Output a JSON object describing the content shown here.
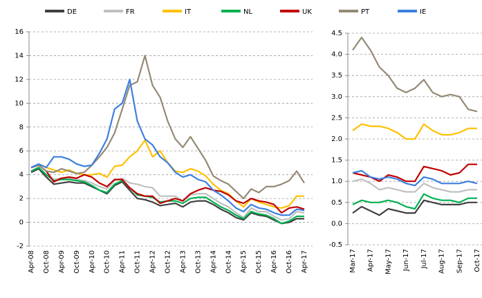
{
  "chart_data": [
    {
      "type": "line",
      "categories": [
        "Apr-08",
        null,
        "Oct-08",
        null,
        "Apr-09",
        null,
        "Oct-09",
        null,
        "Apr-10",
        null,
        "Oct-10",
        null,
        "Apr-11",
        null,
        "Oct-11",
        null,
        "Apr-12",
        null,
        "Oct-12",
        null,
        "Apr-13",
        null,
        "Oct-13",
        null,
        "Apr-14",
        null,
        "Oct-14",
        null,
        "Apr-15",
        null,
        "Oct-15",
        null,
        "Apr-16",
        null,
        "Oct-16",
        null,
        "Apr-17"
      ],
      "ylim": [
        -2,
        16
      ],
      "yticks": [
        -2,
        0,
        2,
        4,
        6,
        8,
        10,
        12,
        14,
        16
      ],
      "grid": true,
      "series": [
        {
          "name": "DE",
          "color": "#404040",
          "values": [
            4.2,
            4.5,
            3.8,
            3.2,
            3.3,
            3.4,
            3.3,
            3.3,
            3.0,
            2.7,
            2.4,
            3.1,
            3.4,
            2.7,
            2.0,
            1.9,
            1.7,
            1.4,
            1.5,
            1.6,
            1.3,
            1.7,
            1.8,
            1.8,
            1.5,
            1.1,
            0.8,
            0.4,
            0.2,
            0.8,
            0.6,
            0.5,
            0.2,
            -0.1,
            0.0,
            0.3,
            0.3
          ]
        },
        {
          "name": "FR",
          "color": "#c0c0c0",
          "values": [
            4.3,
            4.6,
            4.0,
            3.6,
            3.7,
            3.7,
            3.6,
            3.5,
            3.3,
            3.0,
            2.8,
            3.5,
            3.7,
            3.3,
            3.2,
            3.0,
            2.9,
            2.2,
            2.2,
            2.2,
            1.8,
            2.3,
            2.4,
            2.4,
            2.0,
            1.6,
            1.3,
            0.8,
            0.4,
            1.2,
            0.9,
            0.9,
            0.5,
            0.2,
            0.3,
            0.9,
            0.8
          ]
        },
        {
          "name": "IT",
          "color": "#ffc000",
          "values": [
            4.6,
            4.9,
            4.6,
            4.4,
            4.2,
            4.4,
            4.1,
            4.0,
            4.0,
            4.1,
            3.8,
            4.7,
            4.8,
            5.5,
            6.0,
            6.9,
            5.5,
            6.0,
            5.0,
            4.3,
            4.2,
            4.5,
            4.3,
            3.9,
            3.2,
            2.7,
            2.4,
            1.8,
            1.3,
            2.0,
            1.7,
            1.5,
            1.3,
            1.2,
            1.4,
            2.2,
            2.2
          ]
        },
        {
          "name": "NL",
          "color": "#00b050",
          "values": [
            4.3,
            4.6,
            4.0,
            3.5,
            3.6,
            3.6,
            3.5,
            3.4,
            3.1,
            2.7,
            2.5,
            3.2,
            3.5,
            2.9,
            2.3,
            2.2,
            2.1,
            1.7,
            1.8,
            1.8,
            1.6,
            2.0,
            2.1,
            2.1,
            1.7,
            1.3,
            1.0,
            0.6,
            0.3,
            0.9,
            0.7,
            0.6,
            0.3,
            -0.1,
            0.1,
            0.5,
            0.5
          ]
        },
        {
          "name": "UK",
          "color": "#c00000",
          "values": [
            4.6,
            4.8,
            4.3,
            3.4,
            3.7,
            3.8,
            3.7,
            4.0,
            3.8,
            3.3,
            3.0,
            3.6,
            3.6,
            2.9,
            2.4,
            2.2,
            2.2,
            1.6,
            1.8,
            2.0,
            1.8,
            2.4,
            2.7,
            2.9,
            2.7,
            2.6,
            2.3,
            1.8,
            1.6,
            2.0,
            1.8,
            1.7,
            1.5,
            0.8,
            1.2,
            1.3,
            1.1
          ]
        },
        {
          "name": "PT",
          "color": "#948a74",
          "values": [
            4.6,
            4.8,
            4.3,
            4.2,
            4.5,
            4.3,
            4.1,
            4.2,
            4.8,
            5.5,
            6.3,
            7.5,
            9.5,
            11.5,
            11.8,
            14.0,
            11.5,
            10.5,
            8.5,
            7.0,
            6.3,
            7.2,
            6.2,
            5.2,
            3.9,
            3.5,
            3.2,
            2.6,
            2.0,
            2.8,
            2.5,
            3.0,
            3.0,
            3.2,
            3.5,
            4.3,
            3.3
          ]
        },
        {
          "name": "IE",
          "color": "#3c7fe0",
          "values": [
            4.6,
            4.9,
            4.6,
            5.5,
            5.5,
            5.3,
            4.9,
            4.7,
            4.8,
            5.8,
            7.0,
            9.5,
            10.0,
            12.0,
            8.5,
            7.0,
            6.5,
            5.5,
            5.0,
            4.2,
            3.8,
            4.0,
            3.6,
            3.4,
            2.7,
            2.3,
            1.8,
            1.2,
            0.9,
            1.5,
            1.2,
            1.1,
            0.8,
            0.6,
            0.6,
            1.1,
            1.0
          ]
        }
      ]
    },
    {
      "type": "line",
      "categories": [
        "Mar-17",
        null,
        "Apr-17",
        null,
        "May-17",
        null,
        "Jun-17",
        null,
        "Jul-17",
        null,
        "Aug-17",
        null,
        "Sep-17",
        null,
        "Oct-17"
      ],
      "ylim": [
        -0.5,
        4.5
      ],
      "yticks": [
        -0.5,
        {
          "value": 0,
          "label": "0.0"
        },
        0.5,
        {
          "value": 1,
          "label": "1.0"
        },
        1.5,
        {
          "value": 2,
          "label": "2.0"
        },
        2.5,
        {
          "value": 3,
          "label": "3.0"
        },
        3.5,
        {
          "value": 4,
          "label": "4.0"
        },
        4.5
      ],
      "grid": true,
      "series": [
        {
          "color": "#404040",
          "values": [
            0.25,
            0.4,
            0.3,
            0.2,
            0.35,
            0.3,
            0.25,
            0.25,
            0.55,
            0.5,
            0.45,
            0.45,
            0.45,
            0.5,
            0.5
          ]
        },
        {
          "color": "#c0c0c0",
          "values": [
            1.0,
            1.05,
            0.95,
            0.8,
            0.85,
            0.8,
            0.75,
            0.75,
            0.95,
            0.85,
            0.8,
            0.75,
            0.75,
            0.8,
            0.8
          ]
        },
        {
          "color": "#ffc000",
          "values": [
            2.2,
            2.35,
            2.3,
            2.3,
            2.25,
            2.15,
            2.0,
            2.0,
            2.35,
            2.2,
            2.1,
            2.1,
            2.15,
            2.25,
            2.25
          ]
        },
        {
          "color": "#00b050",
          "values": [
            0.45,
            0.55,
            0.5,
            0.5,
            0.55,
            0.5,
            0.4,
            0.35,
            0.7,
            0.6,
            0.55,
            0.55,
            0.5,
            0.6,
            0.6
          ]
        },
        {
          "color": "#c00000",
          "values": [
            1.2,
            1.15,
            1.1,
            1.0,
            1.15,
            1.1,
            1.0,
            1.0,
            1.35,
            1.3,
            1.25,
            1.15,
            1.2,
            1.4,
            1.4
          ]
        },
        {
          "color": "#948a74",
          "values": [
            4.1,
            4.4,
            4.1,
            3.7,
            3.5,
            3.2,
            3.1,
            3.2,
            3.4,
            3.1,
            3.0,
            3.05,
            3.0,
            2.7,
            2.65
          ]
        },
        {
          "color": "#3c7fe0",
          "values": [
            1.2,
            1.25,
            1.1,
            1.05,
            1.1,
            1.05,
            0.95,
            0.9,
            1.1,
            1.05,
            0.95,
            0.95,
            0.95,
            1.0,
            0.95
          ]
        }
      ]
    }
  ]
}
